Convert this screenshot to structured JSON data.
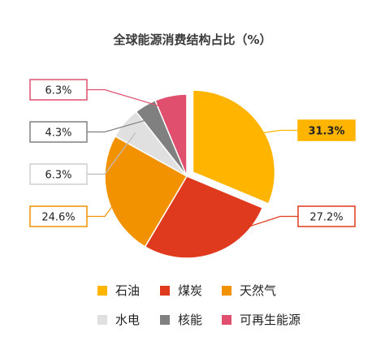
{
  "chart_data": {
    "type": "pie",
    "title": "全球能源消费结构占比（%）",
    "slices": [
      {
        "name": "石油",
        "value": 31.3,
        "label": "31.3%",
        "color": "#FFB400",
        "exploded": true,
        "highlight": true
      },
      {
        "name": "煤炭",
        "value": 27.2,
        "label": "27.2%",
        "color": "#E03A1E"
      },
      {
        "name": "天然气",
        "value": 24.6,
        "label": "24.6%",
        "color": "#F39200"
      },
      {
        "name": "水电",
        "value": 6.3,
        "label": "6.3%",
        "color": "#E0E0E0"
      },
      {
        "name": "核能",
        "value": 4.3,
        "label": "4.3%",
        "color": "#808080"
      },
      {
        "name": "可再生能源",
        "value": 6.3,
        "label": "6.3%",
        "color": "#E0506E"
      }
    ],
    "legend_position": "bottom"
  }
}
